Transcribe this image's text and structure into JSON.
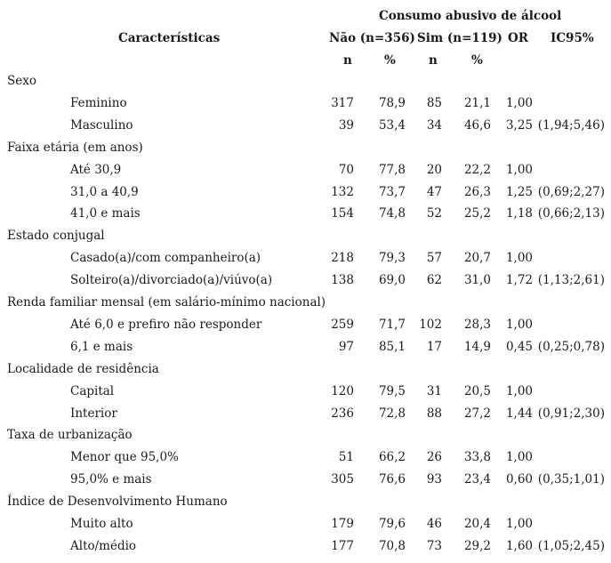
{
  "header": {
    "group": "Consumo abusivo de álcool",
    "characteristics": "Características",
    "nao": "Não (n=356)",
    "sim": "Sim (n=119)",
    "or": "OR",
    "ic": "IC95%",
    "n1": "n",
    "p1": "%",
    "n2": "n",
    "p2": "%"
  },
  "rows": [
    {
      "cat": "Sexo"
    },
    {
      "label": "Feminino",
      "nn": "317",
      "np": "78,9",
      "sn": "85",
      "sp": "21,1",
      "or": "1,00",
      "ic": ""
    },
    {
      "label": "Masculino",
      "nn": "39",
      "np": "53,4",
      "sn": "34",
      "sp": "46,6",
      "or": "3,25",
      "ic": "(1,94;5,46)"
    },
    {
      "cat": "Faixa etária (em anos)"
    },
    {
      "label": "Até 30,9",
      "nn": "70",
      "np": "77,8",
      "sn": "20",
      "sp": "22,2",
      "or": "1,00",
      "ic": ""
    },
    {
      "label": "31,0 a 40,9",
      "nn": "132",
      "np": "73,7",
      "sn": "47",
      "sp": "26,3",
      "or": "1,25",
      "ic": "(0,69;2,27)"
    },
    {
      "label": "41,0 e mais",
      "nn": "154",
      "np": "74,8",
      "sn": "52",
      "sp": "25,2",
      "or": "1,18",
      "ic": "(0,66;2,13)"
    },
    {
      "cat": "Estado conjugal"
    },
    {
      "label": "Casado(a)/com companheiro(a)",
      "nn": "218",
      "np": "79,3",
      "sn": "57",
      "sp": "20,7",
      "or": "1,00",
      "ic": ""
    },
    {
      "label": "Solteiro(a)/divorciado(a)/viúvo(a)",
      "nn": "138",
      "np": "69,0",
      "sn": "62",
      "sp": "31,0",
      "or": "1,72",
      "ic": "(1,13;2,61)"
    },
    {
      "cat": "Renda familiar mensal (em salário-mínimo nacional)"
    },
    {
      "label": "Até 6,0 e prefiro não responder",
      "nn": "259",
      "np": "71,7",
      "sn": "102",
      "sp": "28,3",
      "or": "1,00",
      "ic": ""
    },
    {
      "label": "6,1 e mais",
      "nn": "97",
      "np": "85,1",
      "sn": "17",
      "sp": "14,9",
      "or": "0,45",
      "ic": "(0,25;0,78)"
    },
    {
      "cat": "Localidade de residência"
    },
    {
      "label": "Capital",
      "nn": "120",
      "np": "79,5",
      "sn": "31",
      "sp": "20,5",
      "or": "1,00",
      "ic": ""
    },
    {
      "label": "Interior",
      "nn": "236",
      "np": "72,8",
      "sn": "88",
      "sp": "27,2",
      "or": "1,44",
      "ic": "(0,91;2,30)"
    },
    {
      "cat": "Taxa de urbanização"
    },
    {
      "label": "Menor que 95,0%",
      "nn": "51",
      "np": "66,2",
      "sn": "26",
      "sp": "33,8",
      "or": "1,00",
      "ic": ""
    },
    {
      "label": "95,0% e mais",
      "nn": "305",
      "np": "76,6",
      "sn": "93",
      "sp": "23,4",
      "or": "0,60",
      "ic": "(0,35;1,01)"
    },
    {
      "cat": "Índice de Desenvolvimento Humano"
    },
    {
      "label": "Muito alto",
      "nn": "179",
      "np": "79,6",
      "sn": "46",
      "sp": "20,4",
      "or": "1,00",
      "ic": ""
    },
    {
      "label": "Alto/médio",
      "nn": "177",
      "np": "70,8",
      "sn": "73",
      "sp": "29,2",
      "or": "1,60",
      "ic": "(1,05;2,45)"
    }
  ]
}
